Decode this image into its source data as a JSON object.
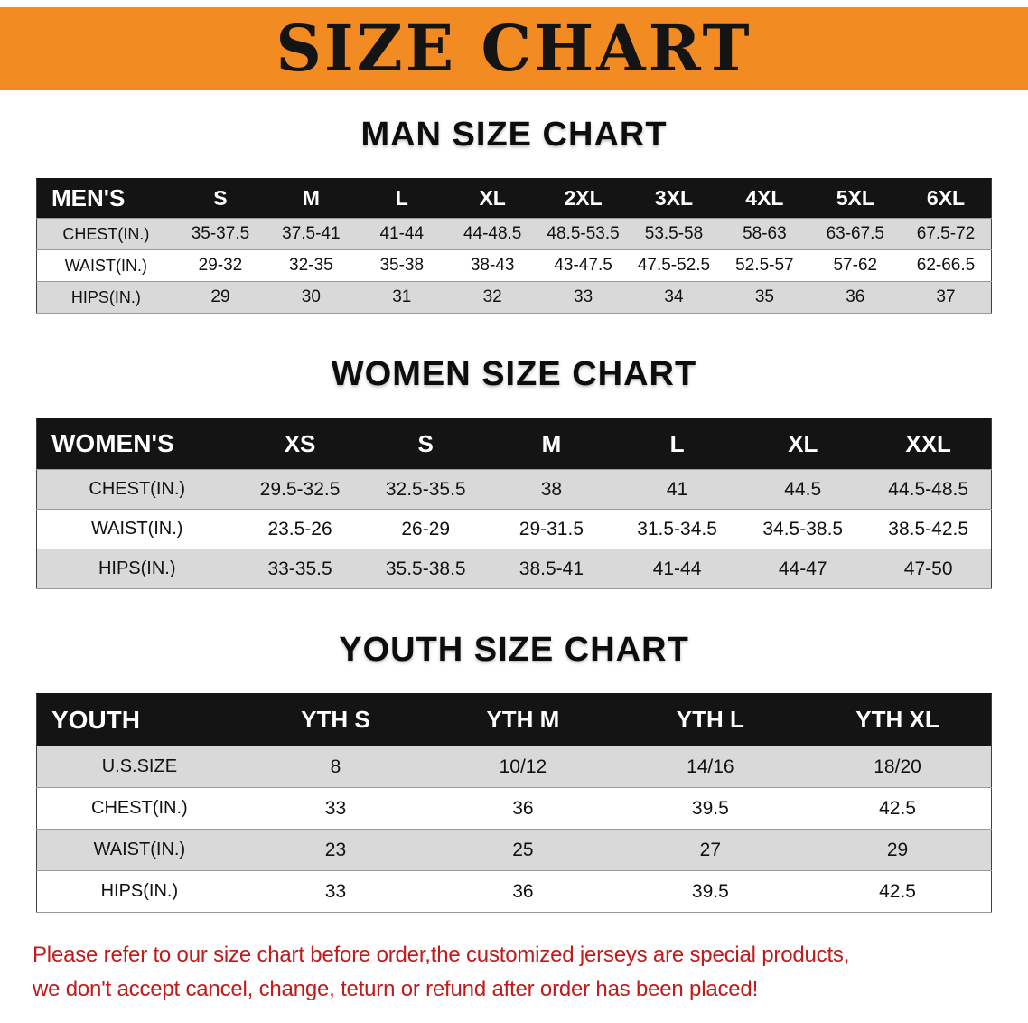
{
  "banner": {
    "title": "SIZE CHART"
  },
  "men": {
    "heading": "MAN SIZE CHART",
    "header": [
      "MEN'S",
      "S",
      "M",
      "L",
      "XL",
      "2XL",
      "3XL",
      "4XL",
      "5XL",
      "6XL"
    ],
    "rows": [
      [
        "CHEST(IN.)",
        "35-37.5",
        "37.5-41",
        "41-44",
        "44-48.5",
        "48.5-53.5",
        "53.5-58",
        "58-63",
        "63-67.5",
        "67.5-72"
      ],
      [
        "WAIST(IN.)",
        "29-32",
        "32-35",
        "35-38",
        "38-43",
        "43-47.5",
        "47.5-52.5",
        "52.5-57",
        "57-62",
        "62-66.5"
      ],
      [
        "HIPS(IN.)",
        "29",
        "30",
        "31",
        "32",
        "33",
        "34",
        "35",
        "36",
        "37"
      ]
    ]
  },
  "women": {
    "heading": "WOMEN SIZE CHART",
    "header": [
      "WOMEN'S",
      "XS",
      "S",
      "M",
      "L",
      "XL",
      "XXL"
    ],
    "rows": [
      [
        "CHEST(IN.)",
        "29.5-32.5",
        "32.5-35.5",
        "38",
        "41",
        "44.5",
        "44.5-48.5"
      ],
      [
        "WAIST(IN.)",
        "23.5-26",
        "26-29",
        "29-31.5",
        "31.5-34.5",
        "34.5-38.5",
        "38.5-42.5"
      ],
      [
        "HIPS(IN.)",
        "33-35.5",
        "35.5-38.5",
        "38.5-41",
        "41-44",
        "44-47",
        "47-50"
      ]
    ]
  },
  "youth": {
    "heading": "YOUTH SIZE CHART",
    "header": [
      "YOUTH",
      "YTH S",
      "YTH M",
      "YTH L",
      "YTH XL"
    ],
    "rows": [
      [
        "U.S.SIZE",
        "8",
        "10/12",
        "14/16",
        "18/20"
      ],
      [
        "CHEST(IN.)",
        "33",
        "36",
        "39.5",
        "42.5"
      ],
      [
        "WAIST(IN.)",
        "23",
        "25",
        "27",
        "29"
      ],
      [
        "HIPS(IN.)",
        "33",
        "36",
        "39.5",
        "42.5"
      ]
    ]
  },
  "disclaimer": {
    "line1": "Please refer to our size chart before order,the customized jerseys are special products,",
    "line2": "we don't accept cancel, change, teturn or refund after order has been placed!"
  },
  "colors": {
    "banner_bg": "#F28B21",
    "header_bg": "#141414",
    "row_alt_bg": "#D9D9D9",
    "disclaimer_text": "#C01A1A"
  }
}
